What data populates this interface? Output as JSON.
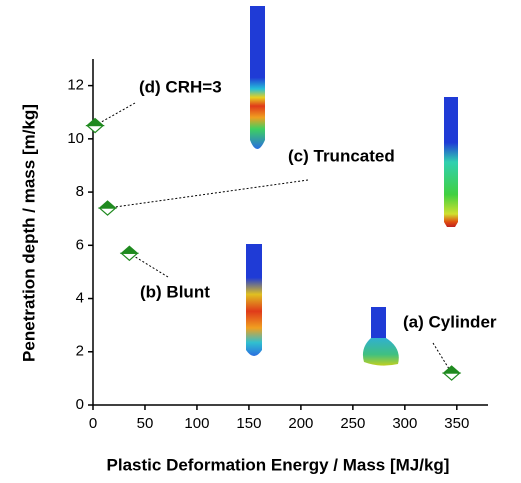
{
  "chart_data": {
    "type": "scatter",
    "xlabel": "Plastic Deformation Energy / Mass [MJ/kg]",
    "ylabel": "Penetration depth / mass [m/kg]",
    "x": [
      2,
      14,
      35,
      345
    ],
    "y": [
      10.5,
      7.4,
      5.7,
      1.2
    ],
    "annotations": [
      "(d) CRH=3",
      "(c) Truncated",
      "(b) Blunt",
      "(a) Cylinder"
    ],
    "color": "#1f8a1f",
    "xlim": [
      0,
      380
    ],
    "ylim": [
      0,
      13
    ],
    "xticks": [
      0,
      50,
      100,
      150,
      200,
      250,
      300,
      350
    ],
    "yticks": [
      0,
      2,
      4,
      6,
      8,
      10,
      12
    ]
  }
}
